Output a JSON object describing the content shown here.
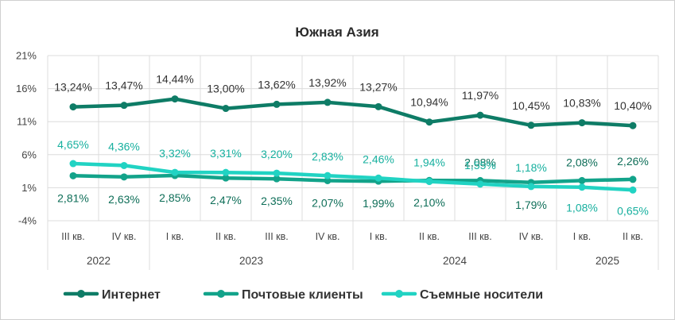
{
  "chart_data": {
    "type": "line",
    "title": "Южная Азия",
    "xlabel": "",
    "ylabel": "",
    "ylim": [
      -4,
      21
    ],
    "yticks": [
      "21%",
      "16%",
      "11%",
      "6%",
      "1%",
      "-4%"
    ],
    "ytick_values": [
      21,
      16,
      11,
      6,
      1,
      -4
    ],
    "categories": [
      "III кв.",
      "IV кв.",
      "I кв.",
      "II кв.",
      "III кв.",
      "IV кв.",
      "I кв.",
      "II кв.",
      "III кв.",
      "IV кв.",
      "I кв.",
      "II кв."
    ],
    "years": [
      {
        "label": "2022",
        "start": 0,
        "end": 1
      },
      {
        "label": "2023",
        "start": 2,
        "end": 5
      },
      {
        "label": "2024",
        "start": 6,
        "end": 9
      },
      {
        "label": "2025",
        "start": 10,
        "end": 11
      }
    ],
    "grid": true,
    "legend_position": "bottom",
    "series": [
      {
        "name": "Интернет",
        "color": "#0e7c66",
        "values": [
          13.24,
          13.47,
          14.44,
          13.0,
          13.62,
          13.92,
          13.27,
          10.94,
          11.97,
          10.45,
          10.83,
          10.4
        ],
        "labels": [
          "13,24%",
          "13,47%",
          "14,44%",
          "13,00%",
          "13,62%",
          "13,92%",
          "13,27%",
          "10,94%",
          "11,97%",
          "10,45%",
          "10,83%",
          "10,40%"
        ],
        "label_color": "#333333",
        "label_position": "above"
      },
      {
        "name": "Почтовые клиенты",
        "color": "#12a38a",
        "values": [
          2.81,
          2.63,
          2.85,
          2.47,
          2.35,
          2.07,
          1.99,
          2.1,
          2.08,
          1.79,
          2.08,
          2.26
        ],
        "labels": [
          "2,81%",
          "2,63%",
          "2,85%",
          "2,47%",
          "2,35%",
          "2,07%",
          "1,99%",
          "2,10%",
          "2,08%",
          "1,79%",
          "2,08%",
          "2,26%"
        ],
        "label_color": "#0e6e58",
        "label_position": "mixed"
      },
      {
        "name": "Съемные носители",
        "color": "#21d3c3",
        "values": [
          4.65,
          4.36,
          3.32,
          3.31,
          3.2,
          2.83,
          2.46,
          1.94,
          1.55,
          1.18,
          1.08,
          0.65
        ],
        "labels": [
          "4,65%",
          "4,36%",
          "3,32%",
          "3,31%",
          "3,20%",
          "2,83%",
          "2,46%",
          "1,94%",
          "1,55%",
          "1,18%",
          "1,08%",
          "0,65%"
        ],
        "label_color": "#17b09f",
        "label_position": "mixed"
      }
    ]
  }
}
